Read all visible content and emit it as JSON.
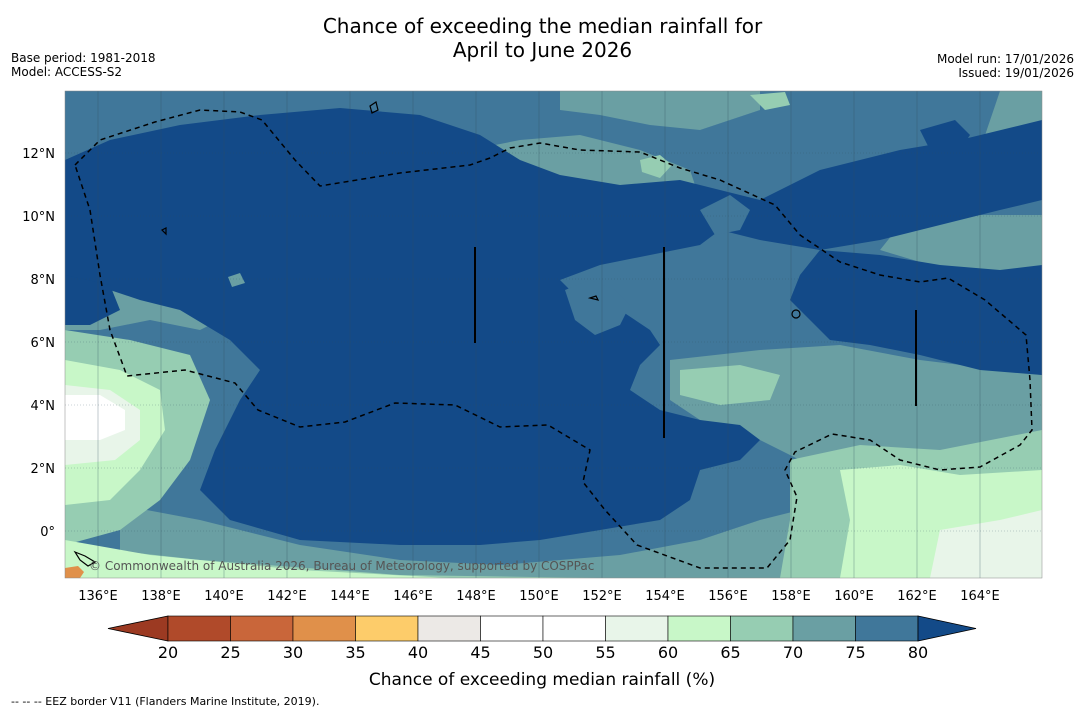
{
  "title_line1": "Chance of exceeding the median rainfall for",
  "title_line2": "April to June 2026",
  "base_period": "Base period: 1981-2018",
  "model": "Model: ACCESS-S2",
  "model_run": "Model run: 17/01/2026",
  "issued": "Issued: 19/01/2026",
  "copyright": "© Commonwealth of Australia 2026, Bureau of Meteorology, supported by COSPPac",
  "lon_labels": [
    "136°E",
    "138°E",
    "140°E",
    "142°E",
    "144°E",
    "146°E",
    "148°E",
    "150°E",
    "152°E",
    "154°E",
    "156°E",
    "158°E",
    "160°E",
    "162°E",
    "164°E"
  ],
  "lat_labels": [
    "12°N",
    "10°N",
    "8°N",
    "6°N",
    "4°N",
    "2°N",
    "0°"
  ],
  "colorbar": {
    "ticks": [
      "20",
      "25",
      "30",
      "35",
      "40",
      "45",
      "50",
      "55",
      "60",
      "65",
      "70",
      "75",
      "80"
    ],
    "colors": [
      "#b04a2a",
      "#c9663a",
      "#e0904a",
      "#fdcc6a",
      "#ece9e6",
      "#ffffff",
      "#ffffff",
      "#e8f5e9",
      "#c8f7c8",
      "#96cdb2",
      "#6a9fa3",
      "#40779a",
      "#134a88"
    ],
    "under_color": "#9c3a22",
    "over_color": "#134a88",
    "label": "Chance of exceeding median rainfall (%)"
  },
  "footer": "--  --  -- EEZ border V11 (Flanders Marine Institute, 2019).",
  "legend_colors": {
    "lt40": "#c9663a",
    "c55": "#e8f5e9",
    "c60": "#c8f7c8",
    "c65": "#96cdb2",
    "c70": "#6a9fa3",
    "c75": "#40779a",
    "c80": "#134a88"
  }
}
